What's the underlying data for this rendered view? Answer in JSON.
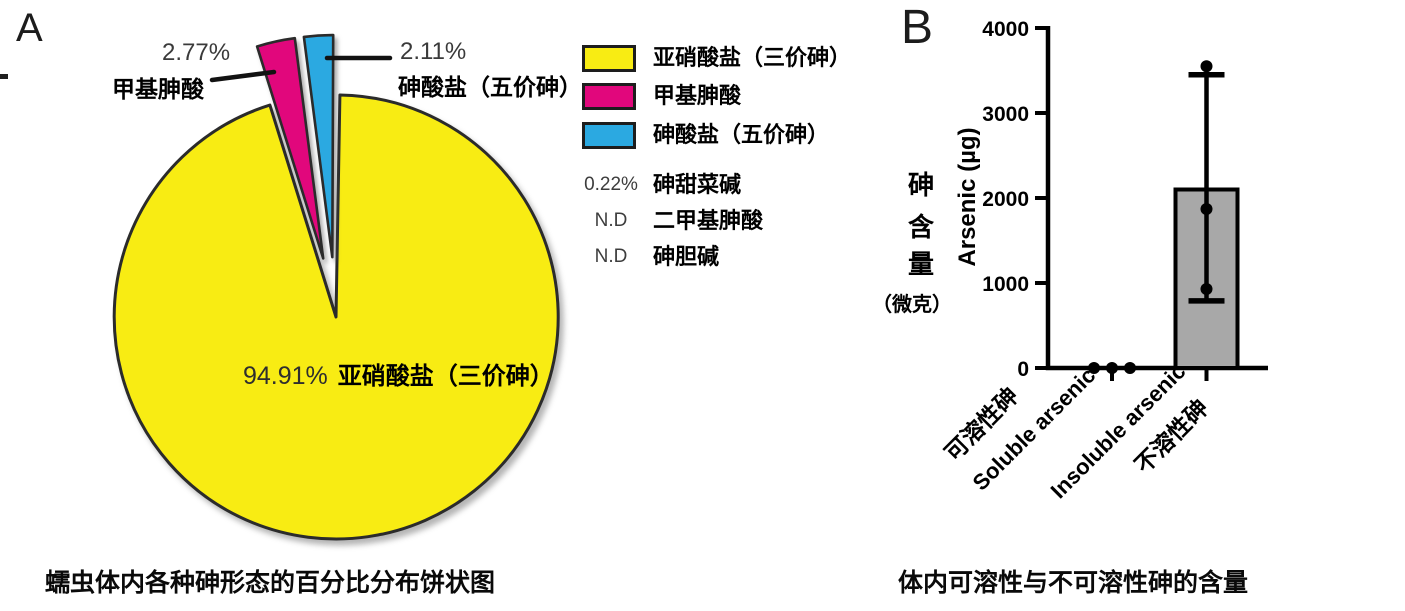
{
  "panelA": {
    "label": "A",
    "caption": "蠕虫体内各种砷形态的百分比分布饼状图",
    "callout_methyl": {
      "pct": "2.77%",
      "name": "甲基胂酸"
    },
    "callout_arsenate": {
      "pct": "2.11%",
      "name": "砷酸盐（五价砷）"
    },
    "inner_label": {
      "pct": "94.91%",
      "name": "亚硝酸盐（三价砷）"
    },
    "legend": [
      {
        "label": "亚硝酸盐（三价砷）",
        "color": "#F8EC13"
      },
      {
        "label": "甲基胂酸",
        "color": "#E1077C"
      },
      {
        "label": "砷酸盐（五价砷）",
        "color": "#2BA9E1"
      }
    ],
    "legend_values": [
      {
        "value": "0.22%",
        "label": "砷甜菜碱"
      },
      {
        "value": "N.D",
        "label": "二甲基胂酸"
      },
      {
        "value": "N.D",
        "label": "砷胆碱"
      }
    ]
  },
  "panelB": {
    "label": "B",
    "caption": "体内可溶性与不可溶性砷的含量",
    "ylabel_en": "Arsenic (µg)",
    "ylabel_cn_chars": [
      "砷",
      "含",
      "量"
    ],
    "ylabel_cn_unit": "（微克）"
  },
  "chart_data": [
    {
      "type": "pie",
      "title": "蠕虫体内各种砷形态的百分比分布饼状图",
      "slices": [
        {
          "label": "亚硝酸盐（三价砷）",
          "value": 94.91,
          "display": "94.91%",
          "color": "#F8EC13",
          "exploded": false
        },
        {
          "label": "甲基胂酸",
          "value": 2.77,
          "display": "2.77%",
          "color": "#E1077C",
          "exploded": true
        },
        {
          "label": "砷酸盐（五价砷）",
          "value": 2.11,
          "display": "2.11%",
          "color": "#2BA9E1",
          "exploded": true
        },
        {
          "label": "砷甜菜碱",
          "value": 0.22,
          "display": "0.22%",
          "color": null,
          "exploded": false
        },
        {
          "label": "二甲基胂酸",
          "value": null,
          "display": "N.D",
          "color": null,
          "exploded": false
        },
        {
          "label": "砷胆碱",
          "value": null,
          "display": "N.D",
          "color": null,
          "exploded": false
        }
      ],
      "legend_position": "right"
    },
    {
      "type": "bar",
      "title": "体内可溶性与不可溶性砷的含量",
      "categories": [
        "Soluble arsenic",
        "Insoluble arsenic"
      ],
      "categories_cn": [
        "可溶性砷",
        "不溶性砷"
      ],
      "values": [
        0,
        2100
      ],
      "error_low": [
        null,
        790
      ],
      "error_high": [
        null,
        3450
      ],
      "points": [
        [
          0,
          0,
          0
        ],
        [
          3550,
          1870,
          930
        ]
      ],
      "ylabel": "Arsenic (µg)",
      "ylabel_cn": "砷含量（微克）",
      "ylim": [
        0,
        4000
      ],
      "yticks": [
        0,
        1000,
        2000,
        3000,
        4000
      ],
      "bar_color": "#A8A8A8",
      "grid": false
    }
  ]
}
